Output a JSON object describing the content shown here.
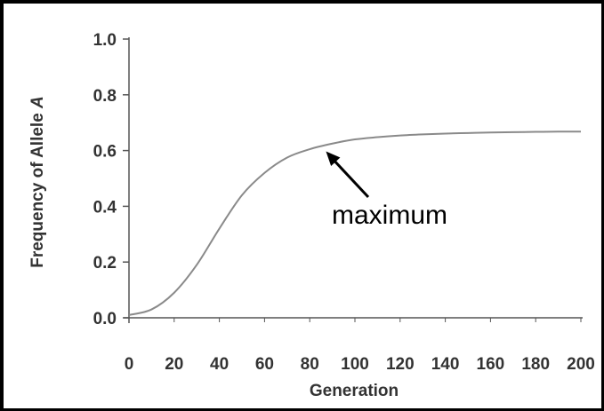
{
  "chart_data": {
    "type": "line",
    "title": "",
    "xlabel": "Generation",
    "ylabel_prefix": "Frequency of Allele ",
    "ylabel_symbol": "A",
    "xlim": [
      0,
      200
    ],
    "ylim": [
      0,
      1.0
    ],
    "x_ticks": [
      "0",
      "20",
      "40",
      "60",
      "80",
      "100",
      "120",
      "140",
      "160",
      "180",
      "200"
    ],
    "y_ticks": [
      "0.0",
      "0.2",
      "0.4",
      "0.6",
      "0.8",
      "1.0"
    ],
    "grid": false,
    "legend": "none",
    "series": [
      {
        "x": [
          0,
          10,
          20,
          30,
          40,
          50,
          60,
          70,
          80,
          90,
          100,
          110,
          120,
          130,
          140,
          150,
          160,
          170,
          180,
          190,
          200
        ],
        "y": [
          0.01,
          0.03,
          0.09,
          0.19,
          0.32,
          0.44,
          0.52,
          0.575,
          0.605,
          0.625,
          0.64,
          0.648,
          0.654,
          0.658,
          0.661,
          0.663,
          0.665,
          0.666,
          0.667,
          0.668,
          0.668
        ]
      }
    ],
    "annotation": {
      "text": "maximum",
      "x": 86,
      "y": 0.61
    },
    "colors": {
      "line": "#8a8a8a",
      "axis": "#555555",
      "arrow": "#000000"
    }
  }
}
